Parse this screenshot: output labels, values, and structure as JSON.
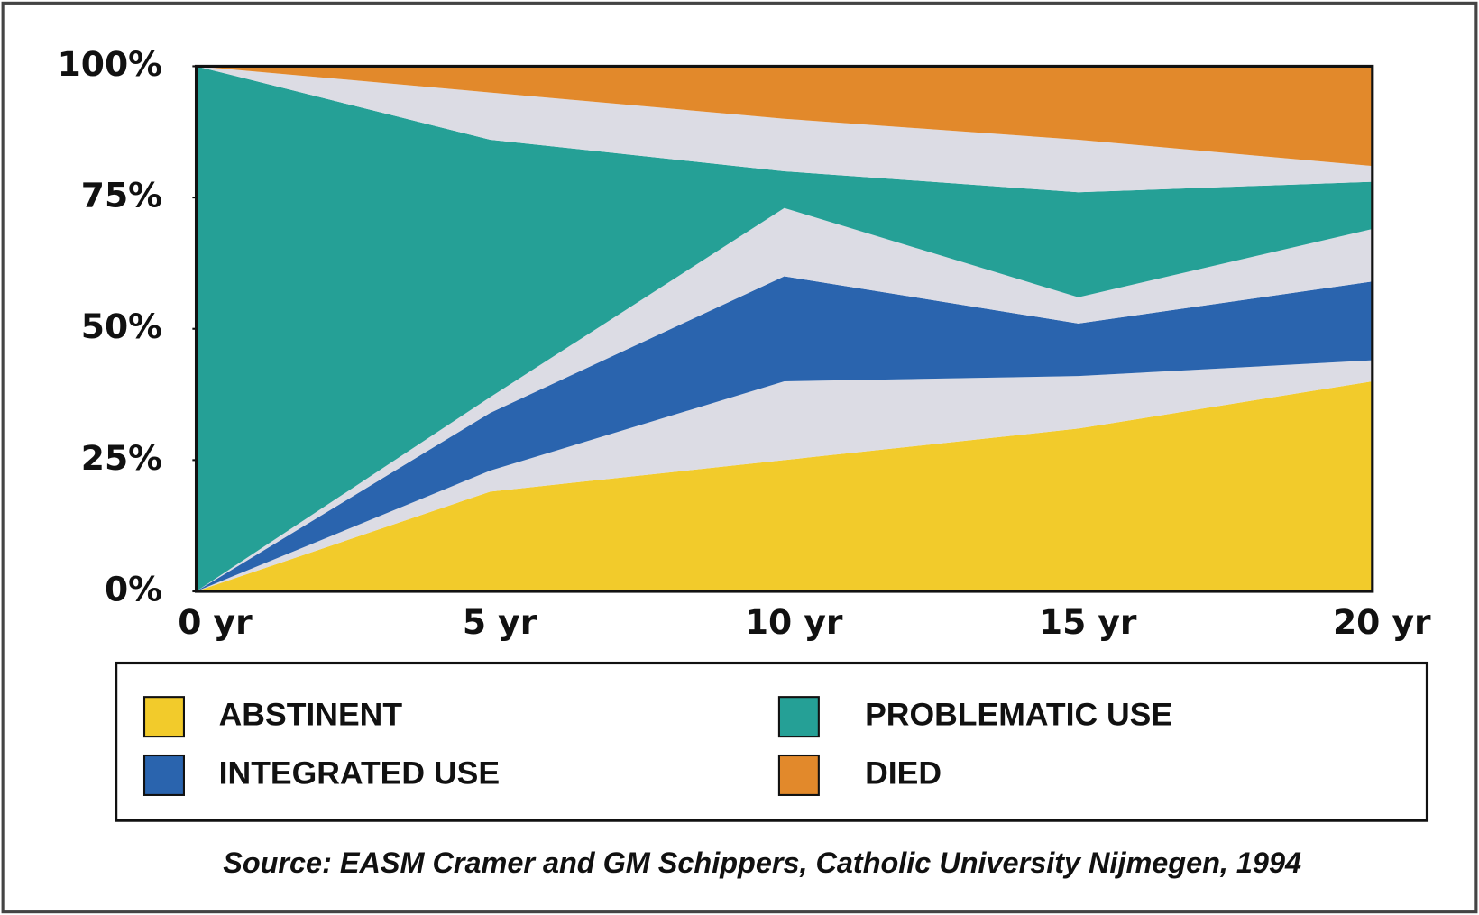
{
  "chart_data": {
    "type": "stacked-area",
    "categories": [
      "0 yr",
      "5 yr",
      "10 yr",
      "15 yr",
      "20 yr"
    ],
    "series": [
      {
        "name": "ABSTINENT",
        "color": "#f2cb2b",
        "values": [
          0,
          19,
          25,
          31,
          40
        ]
      },
      {
        "color": "#dcdce4",
        "values": [
          0,
          4,
          15,
          10,
          4
        ]
      },
      {
        "name": "INTEGRATED USE",
        "color": "#2a64ae",
        "values": [
          0,
          11,
          20,
          10,
          15
        ]
      },
      {
        "color": "#dcdce4",
        "values": [
          0,
          3,
          13,
          5,
          10
        ]
      },
      {
        "name": "PROBLEMATIC USE",
        "color": "#25a096",
        "values": [
          100,
          49,
          7,
          20,
          9
        ]
      },
      {
        "color": "#dcdce4",
        "values": [
          0,
          9,
          10,
          10,
          3
        ]
      },
      {
        "name": "DIED",
        "color": "#e2892b",
        "values": [
          0,
          5,
          10,
          14,
          19
        ]
      }
    ],
    "ylim": [
      0,
      100
    ],
    "yticks": [
      {
        "value": 0,
        "label": "0%"
      },
      {
        "value": 25,
        "label": "25%"
      },
      {
        "value": 50,
        "label": "50%"
      },
      {
        "value": 75,
        "label": "75%"
      },
      {
        "value": 100,
        "label": "100%"
      }
    ],
    "source": "Source: EASM Cramer and GM Schippers, Catholic University Nijmegen, 1994"
  }
}
